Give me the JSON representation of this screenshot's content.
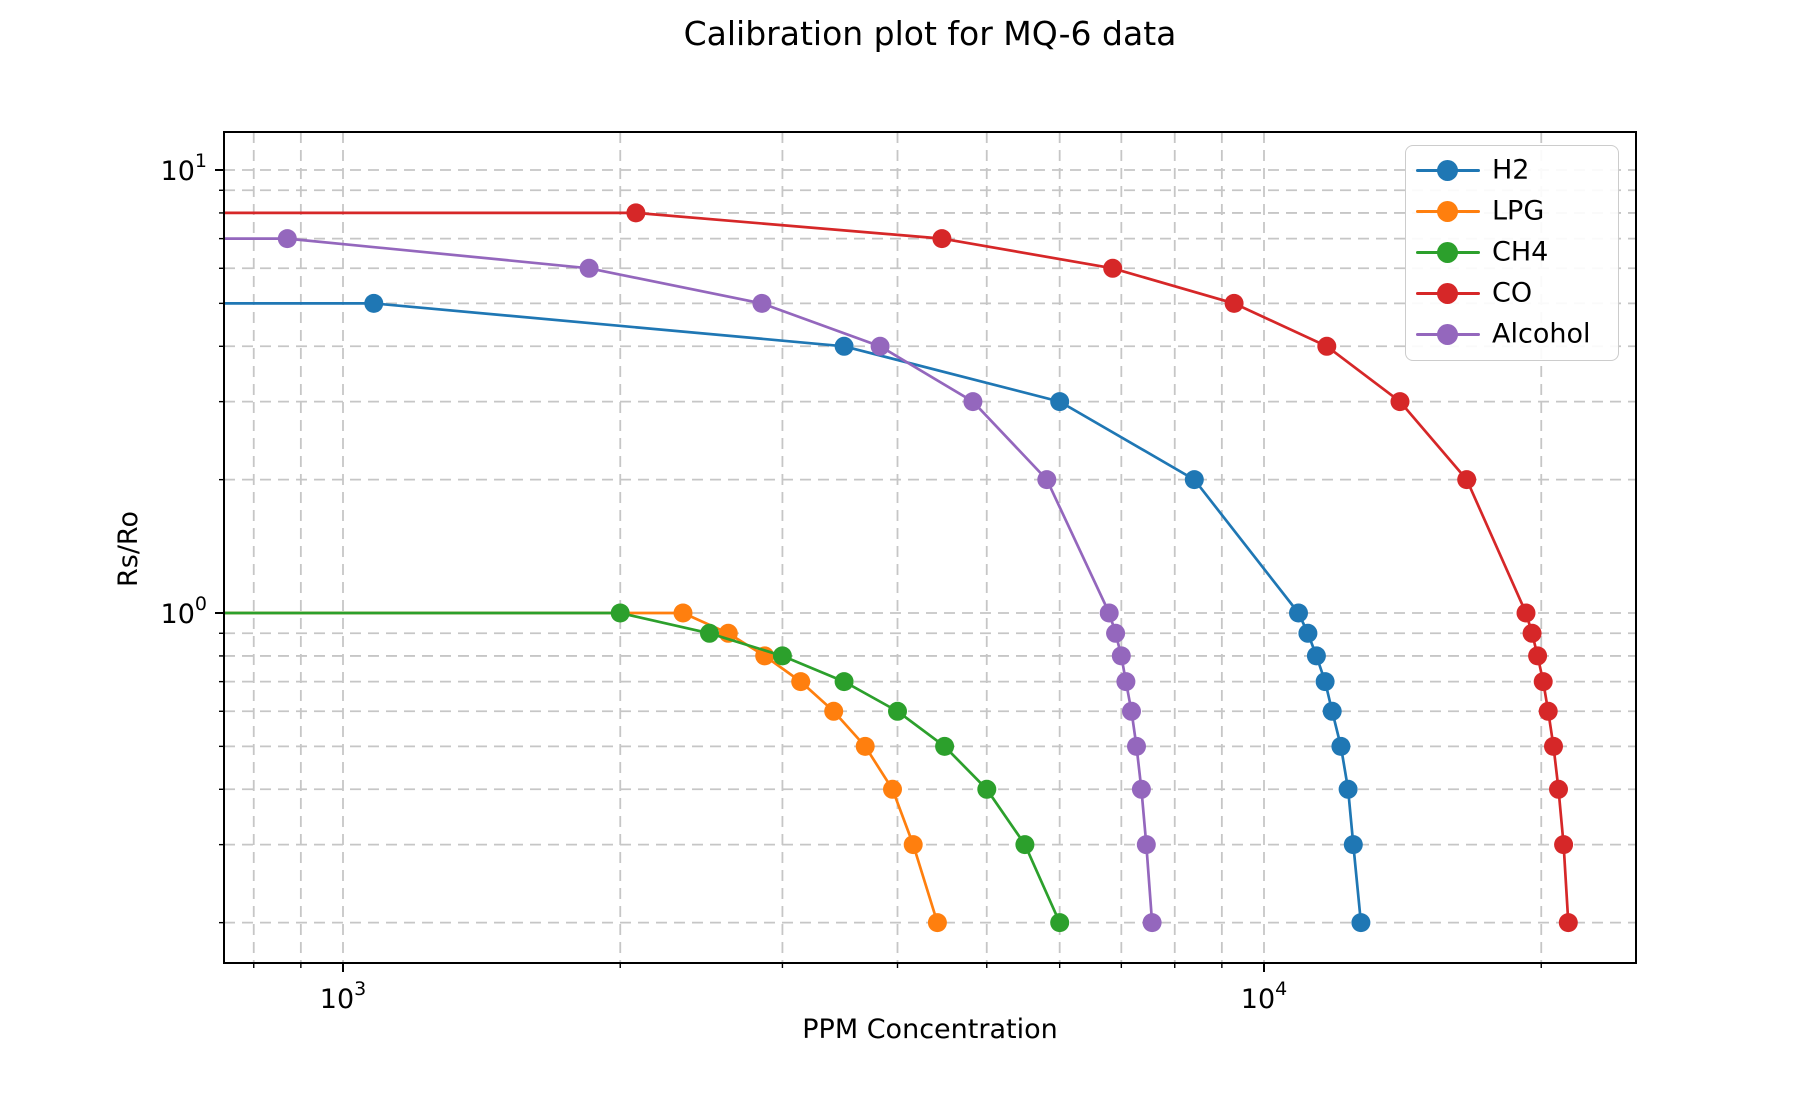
{
  "figure": {
    "title": "Calibration plot for MQ-6 data"
  },
  "colors": {
    "H2": "#1f77b4",
    "LPG": "#ff7f0e",
    "CH4": "#2ca02c",
    "CO": "#d62728",
    "Alcohol": "#9467bd",
    "grid": "#c6c6c6",
    "spine": "#000000",
    "legend_border": "#cccccc"
  },
  "legend": {
    "position": "upper right",
    "entries": [
      "H2",
      "LPG",
      "CH4",
      "CO",
      "Alcohol"
    ]
  },
  "chart_data": {
    "type": "line",
    "title": "Calibration plot for MQ-6 data",
    "xlabel": "PPM Concentration",
    "ylabel": "Rs/Ro",
    "x_scale": "log",
    "y_scale": "log",
    "xlim": [
      743,
      25340
    ],
    "ylim": [
      0.162,
      12.18
    ],
    "grid": "both-dashed",
    "x_ticks": [
      {
        "value": 1000,
        "label": "10^3"
      },
      {
        "value": 10000,
        "label": "10^4"
      }
    ],
    "y_ticks": [
      {
        "value": 1,
        "label": "10^0"
      },
      {
        "value": 10,
        "label": "10^1"
      }
    ],
    "series": [
      {
        "name": "H2",
        "color": "#1f77b4",
        "extends_left": true,
        "points": [
          [
            1080,
            5.0
          ],
          [
            3500,
            4.0
          ],
          [
            6000,
            3.0
          ],
          [
            8400,
            2.0
          ],
          [
            10900,
            1.0
          ],
          [
            11160,
            0.9
          ],
          [
            11400,
            0.8
          ],
          [
            11650,
            0.7
          ],
          [
            11860,
            0.6
          ],
          [
            12120,
            0.5
          ],
          [
            12340,
            0.4
          ],
          [
            12500,
            0.3
          ],
          [
            12740,
            0.2
          ]
        ]
      },
      {
        "name": "LPG",
        "color": "#ff7f0e",
        "extends_left": true,
        "points": [
          [
            2340,
            1.0
          ],
          [
            2620,
            0.9
          ],
          [
            2870,
            0.8
          ],
          [
            3140,
            0.7
          ],
          [
            3410,
            0.6
          ],
          [
            3690,
            0.5
          ],
          [
            3950,
            0.4
          ],
          [
            4160,
            0.3
          ],
          [
            4420,
            0.2
          ]
        ]
      },
      {
        "name": "CH4",
        "color": "#2ca02c",
        "extends_left": true,
        "points": [
          [
            2000,
            1.0
          ],
          [
            2500,
            0.9
          ],
          [
            3000,
            0.8
          ],
          [
            3500,
            0.7
          ],
          [
            4000,
            0.6
          ],
          [
            4500,
            0.5
          ],
          [
            5000,
            0.4
          ],
          [
            5500,
            0.3
          ],
          [
            6000,
            0.2
          ]
        ]
      },
      {
        "name": "CO",
        "color": "#d62728",
        "extends_left": true,
        "points": [
          [
            2080,
            8.0
          ],
          [
            4470,
            7.0
          ],
          [
            6850,
            6.0
          ],
          [
            9280,
            5.0
          ],
          [
            11700,
            4.0
          ],
          [
            14050,
            3.0
          ],
          [
            16600,
            2.0
          ],
          [
            19250,
            1.0
          ],
          [
            19550,
            0.9
          ],
          [
            19820,
            0.8
          ],
          [
            20100,
            0.7
          ],
          [
            20350,
            0.6
          ],
          [
            20620,
            0.5
          ],
          [
            20880,
            0.4
          ],
          [
            21150,
            0.3
          ],
          [
            21400,
            0.2
          ]
        ]
      },
      {
        "name": "Alcohol",
        "color": "#9467bd",
        "extends_left": true,
        "points": [
          [
            870,
            7.0
          ],
          [
            1850,
            6.0
          ],
          [
            2850,
            5.0
          ],
          [
            3830,
            4.0
          ],
          [
            4830,
            3.0
          ],
          [
            5810,
            2.0
          ],
          [
            6790,
            1.0
          ],
          [
            6900,
            0.9
          ],
          [
            7000,
            0.8
          ],
          [
            7080,
            0.7
          ],
          [
            7180,
            0.6
          ],
          [
            7270,
            0.5
          ],
          [
            7360,
            0.4
          ],
          [
            7450,
            0.3
          ],
          [
            7560,
            0.2
          ]
        ]
      }
    ]
  }
}
